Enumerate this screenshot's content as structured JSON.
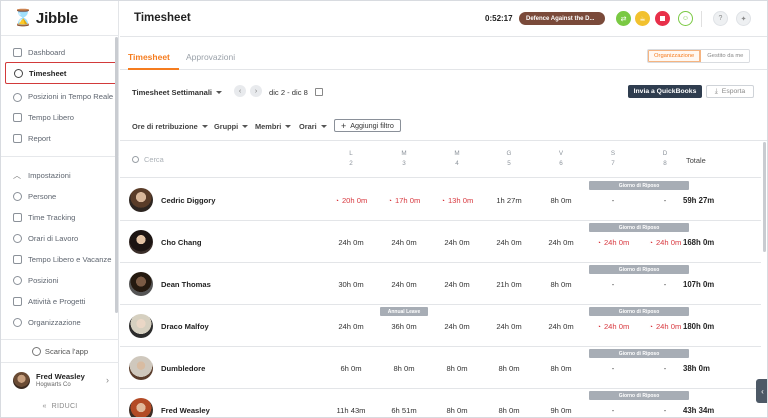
{
  "brand": {
    "logo_mark": "⌛",
    "name": "Jibble",
    "accent": "#f57c1f"
  },
  "sidebar": {
    "items": [
      {
        "label": "Dashboard"
      },
      {
        "label": "Timesheet"
      },
      {
        "label": "Posizioni in Tempo Reale"
      },
      {
        "label": "Tempo Libero"
      },
      {
        "label": "Report"
      }
    ],
    "settings": [
      {
        "label": "Impostazioni"
      },
      {
        "label": "Persone"
      },
      {
        "label": "Time Tracking"
      },
      {
        "label": "Orari di Lavoro"
      },
      {
        "label": "Tempo Libero e Vacanze"
      },
      {
        "label": "Posizioni"
      },
      {
        "label": "Attività e Progetti"
      },
      {
        "label": "Organizzazione"
      }
    ],
    "download": "Scarica l'app",
    "user": {
      "name": "Fred Weasley",
      "org": "Hogwarts Co"
    },
    "reduce": "RIDUCI"
  },
  "header": {
    "title": "Timesheet",
    "timer": "0:52:17",
    "activity": "Defence Against the D..."
  },
  "tabs": {
    "items": [
      "Timesheet",
      "Approvazioni"
    ],
    "scope": [
      "Organizzazione",
      "Gestito da me"
    ]
  },
  "toolbar": {
    "view": "Timesheet Settimanali",
    "range": "dic 2 - dic 8",
    "quickbooks": "Invia a QuickBooks",
    "export": "Esporta"
  },
  "filters": {
    "items": [
      "Ore di retribuzione",
      "Gruppi",
      "Membri",
      "Orari"
    ],
    "add": "Aggiungi filtro"
  },
  "table": {
    "search_placeholder": "Cerca",
    "days": [
      {
        "letter": "L",
        "num": "2"
      },
      {
        "letter": "M",
        "num": "3"
      },
      {
        "letter": "M",
        "num": "4"
      },
      {
        "letter": "G",
        "num": "5"
      },
      {
        "letter": "V",
        "num": "6"
      },
      {
        "letter": "S",
        "num": "7"
      },
      {
        "letter": "D",
        "num": "8"
      }
    ],
    "total_label": "Totale",
    "rest_label": "Giorno di Riposo",
    "leave_label": "Annual Leave",
    "rows": [
      {
        "name": "Cedric Diggory",
        "cells": [
          "20h 0m",
          "17h 0m",
          "13h 0m",
          "1h 27m",
          "8h 0m",
          "-",
          "-"
        ],
        "total": "59h 27m"
      },
      {
        "name": "Cho Chang",
        "cells": [
          "24h 0m",
          "24h 0m",
          "24h 0m",
          "24h 0m",
          "24h 0m",
          "24h 0m",
          "24h 0m"
        ],
        "total": "168h 0m"
      },
      {
        "name": "Dean Thomas",
        "cells": [
          "30h 0m",
          "24h 0m",
          "24h 0m",
          "21h 0m",
          "8h 0m",
          "-",
          "-"
        ],
        "total": "107h 0m"
      },
      {
        "name": "Draco Malfoy",
        "cells": [
          "24h 0m",
          "36h 0m",
          "24h 0m",
          "24h 0m",
          "24h 0m",
          "24h 0m",
          "24h 0m"
        ],
        "total": "180h 0m"
      },
      {
        "name": "Dumbledore",
        "cells": [
          "6h 0m",
          "8h 0m",
          "8h 0m",
          "8h 0m",
          "8h 0m",
          "-",
          "-"
        ],
        "total": "38h 0m"
      },
      {
        "name": "Fred Weasley",
        "cells": [
          "11h 43m",
          "6h 51m",
          "8h 0m",
          "8h 0m",
          "9h 0m",
          "-",
          "-"
        ],
        "total": "43h 34m"
      }
    ]
  }
}
